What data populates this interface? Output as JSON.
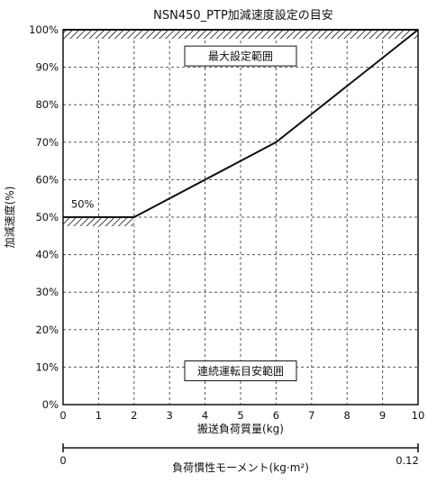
{
  "chart_data": {
    "type": "line",
    "title": "NSN450_PTP加減速度設定の目安",
    "xlabel": "搬送負荷質量(kg)",
    "ylabel": "加減速度(%)",
    "x_ticks": [
      "0",
      "1",
      "2",
      "3",
      "4",
      "5",
      "6",
      "7",
      "8",
      "9",
      "10"
    ],
    "y_ticks": [
      "0%",
      "10%",
      "20%",
      "30%",
      "40%",
      "50%",
      "60%",
      "70%",
      "80%",
      "90%",
      "100%"
    ],
    "xlim": [
      0,
      10
    ],
    "ylim": [
      0,
      100
    ],
    "grid": true,
    "series": [
      {
        "x": [
          0,
          2,
          6,
          10
        ],
        "y": [
          50,
          50,
          70,
          100
        ]
      }
    ],
    "hatch_bands": [
      {
        "x_from": 0,
        "x_to": 10,
        "y_level": 100,
        "side": "below"
      },
      {
        "x_from": 0,
        "x_to": 2,
        "y_level": 50,
        "side": "below"
      }
    ],
    "annotations": {
      "max_box": "最大設定範囲",
      "max_box_anchor": {
        "x": 5,
        "y": 93
      },
      "cont_box": "連続運転目安範囲",
      "cont_box_anchor": {
        "x": 5,
        "y": 9
      },
      "level_label": "50%",
      "level_label_anchor": {
        "x": 0.55,
        "y": 52.5
      }
    },
    "secondary_axis": {
      "label": "負荷慣性モーメント(kg·m²)",
      "min_label": "0",
      "max_label": "0.12"
    },
    "colors": {
      "line": "#111111",
      "grid": "#555555",
      "frame": "#111111"
    }
  }
}
